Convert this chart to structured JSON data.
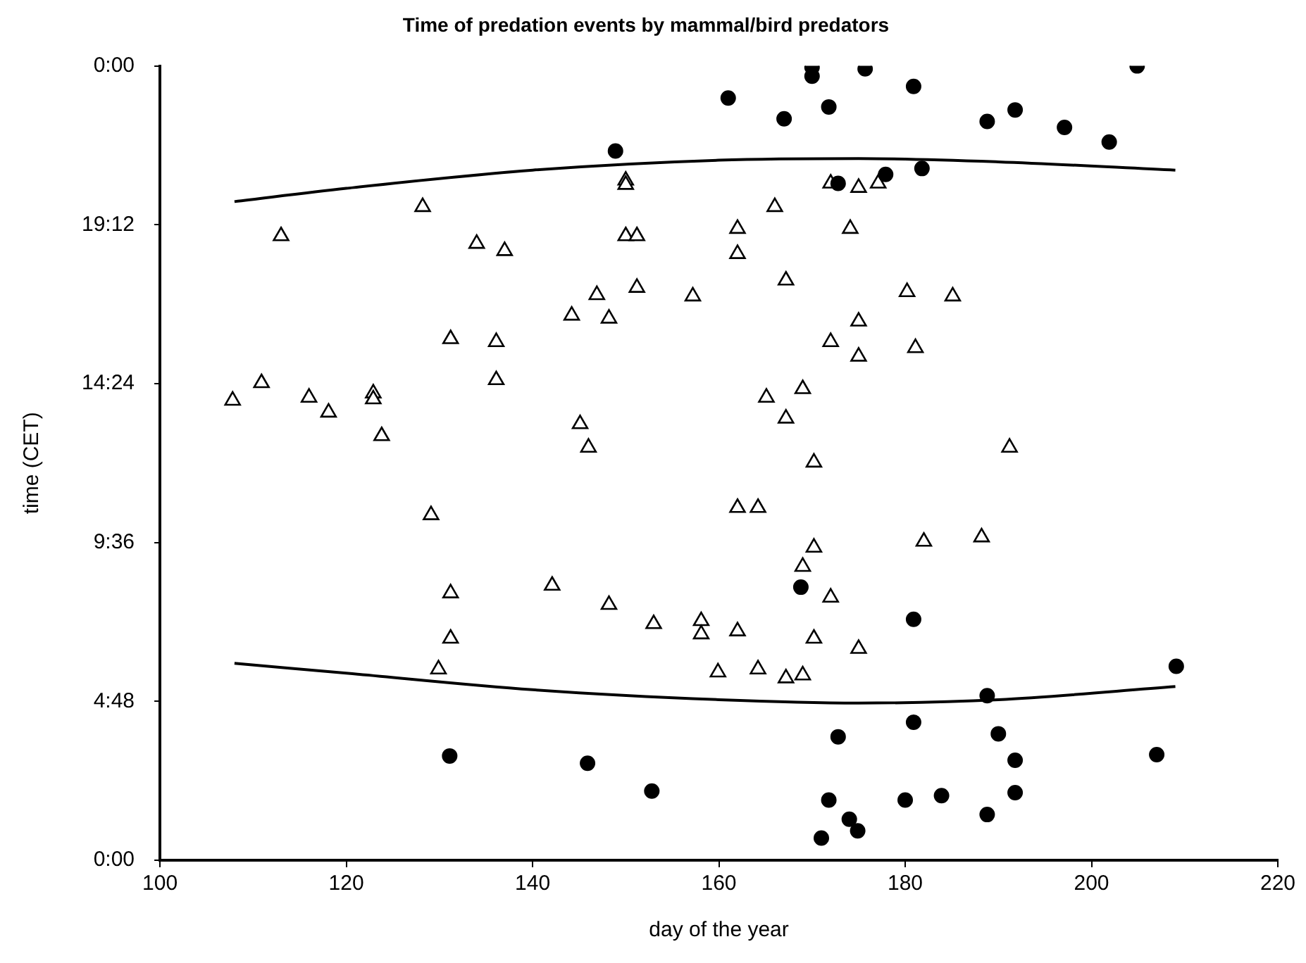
{
  "chart_data": {
    "type": "scatter",
    "title": "Time of predation events by mammal/bird predators",
    "xlabel": "day of the year",
    "ylabel": "time (CET)",
    "xlim": [
      100,
      220
    ],
    "xticks": [
      100,
      120,
      140,
      160,
      180,
      200,
      220
    ],
    "ylim": [
      0,
      24
    ],
    "yticks": [
      {
        "value": 0,
        "label": "0:00"
      },
      {
        "value": 4.8,
        "label": "4:48"
      },
      {
        "value": 9.6,
        "label": "9:36"
      },
      {
        "value": 14.4,
        "label": "14:24"
      },
      {
        "value": 19.2,
        "label": "19:12"
      },
      {
        "value": 24,
        "label": "0:00"
      }
    ],
    "grid": false,
    "legend": false,
    "series": [
      {
        "type": "scatter",
        "marker": "circle",
        "color": "#000000",
        "x": [
          148.9,
          161.0,
          167.0,
          170.0,
          170.0,
          171.8,
          175.7,
          180.9,
          188.8,
          191.8,
          197.1,
          201.9,
          204.9,
          172.8,
          177.9,
          181.8,
          131.1,
          145.9,
          152.8,
          168.8,
          180.9,
          209.1,
          188.8,
          172.8,
          180.9,
          190.0,
          191.8,
          207.0,
          171.8,
          180.0,
          183.9,
          191.8,
          188.8,
          174.0,
          174.9,
          171.0
        ],
        "values": [
          21.43,
          23.03,
          22.4,
          23.96,
          23.69,
          22.76,
          23.91,
          23.38,
          22.32,
          22.67,
          22.14,
          21.7,
          24.0,
          20.45,
          20.72,
          20.9,
          3.15,
          2.93,
          2.09,
          8.25,
          7.28,
          5.86,
          4.97,
          3.73,
          4.17,
          3.82,
          3.02,
          3.19,
          1.82,
          1.82,
          1.95,
          2.04,
          1.38,
          1.24,
          0.89,
          0.67
        ]
      },
      {
        "type": "scatter",
        "marker": "triangle",
        "color": "#000000",
        "x": [
          113.0,
          128.2,
          134.0,
          137.0,
          150.0,
          150.0,
          150.0,
          151.2,
          146.9,
          144.2,
          148.2,
          151.2,
          157.2,
          131.2,
          136.1,
          136.1,
          107.8,
          110.9,
          116.0,
          118.1,
          122.9,
          122.9,
          123.8,
          145.1,
          146.0,
          172.0,
          175.0,
          177.1,
          166.0,
          162.0,
          174.1,
          162.0,
          167.2,
          180.2,
          185.1,
          175.0,
          172.0,
          181.1,
          175.0,
          165.1,
          169.0,
          167.2,
          191.2,
          170.2,
          129.1,
          131.2,
          131.2,
          129.9,
          142.1,
          148.2,
          153.0,
          158.1,
          158.1,
          159.9,
          162.0,
          164.2,
          167.2,
          169.0,
          170.2,
          175.0,
          172.0,
          170.2,
          169.0,
          162.0,
          164.2,
          182.0,
          188.2
        ],
        "values": [
          18.86,
          19.74,
          18.63,
          18.41,
          20.54,
          20.41,
          18.86,
          18.86,
          17.08,
          16.46,
          16.37,
          17.3,
          17.04,
          15.75,
          15.66,
          14.51,
          13.89,
          14.42,
          13.98,
          13.53,
          14.11,
          13.93,
          12.82,
          13.18,
          12.47,
          20.45,
          20.32,
          20.45,
          19.74,
          19.08,
          19.08,
          18.32,
          17.52,
          17.17,
          17.04,
          16.28,
          15.66,
          15.48,
          15.22,
          13.98,
          14.24,
          13.35,
          12.47,
          12.02,
          10.43,
          8.07,
          6.7,
          5.77,
          8.3,
          7.72,
          7.14,
          7.23,
          6.83,
          5.68,
          6.92,
          5.77,
          5.5,
          5.59,
          6.7,
          6.39,
          7.94,
          9.45,
          8.87,
          10.65,
          10.65,
          9.63,
          9.76
        ]
      },
      {
        "type": "line",
        "marker": "none",
        "color": "#000000",
        "x": [
          108,
          120,
          140,
          160,
          175,
          190,
          209
        ],
        "values": [
          19.9,
          20.3,
          20.85,
          21.15,
          21.2,
          21.1,
          20.85
        ]
      },
      {
        "type": "line",
        "marker": "none",
        "color": "#000000",
        "x": [
          108,
          120,
          140,
          160,
          175,
          190,
          209
        ],
        "values": [
          5.95,
          5.65,
          5.15,
          4.85,
          4.75,
          4.85,
          5.25
        ]
      }
    ]
  }
}
